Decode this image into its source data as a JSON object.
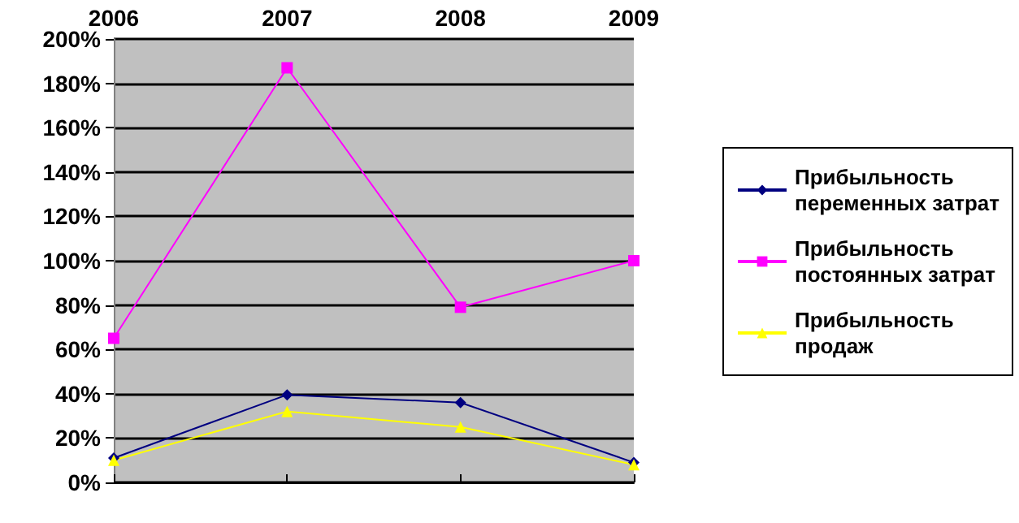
{
  "chart_data": {
    "type": "line",
    "categories": [
      "2006",
      "2007",
      "2008",
      "2009"
    ],
    "series": [
      {
        "name": "Прибыльность переменных затрат",
        "color": "#000080",
        "marker": "diamond",
        "values": [
          11,
          39.5,
          36,
          9
        ]
      },
      {
        "name": "Прибыльность постоянных затрат",
        "color": "#ff00ff",
        "marker": "square",
        "values": [
          65,
          187,
          79,
          100
        ]
      },
      {
        "name": "Прибыльность продаж",
        "color": "#ffff00",
        "marker": "triangle",
        "values": [
          10,
          32,
          25,
          8
        ]
      }
    ],
    "ylim": [
      0,
      200
    ],
    "yticks": [
      {
        "value": 0,
        "label": "0%"
      },
      {
        "value": 20,
        "label": "20%"
      },
      {
        "value": 40,
        "label": "40%"
      },
      {
        "value": 60,
        "label": "60%"
      },
      {
        "value": 80,
        "label": "80%"
      },
      {
        "value": 100,
        "label": "100%"
      },
      {
        "value": 120,
        "label": "120%"
      },
      {
        "value": 140,
        "label": "140%"
      },
      {
        "value": 160,
        "label": "160%"
      },
      {
        "value": 180,
        "label": "180%"
      },
      {
        "value": 200,
        "label": "200%"
      }
    ],
    "grid": "y",
    "legend": "right",
    "line_style": "solid"
  }
}
